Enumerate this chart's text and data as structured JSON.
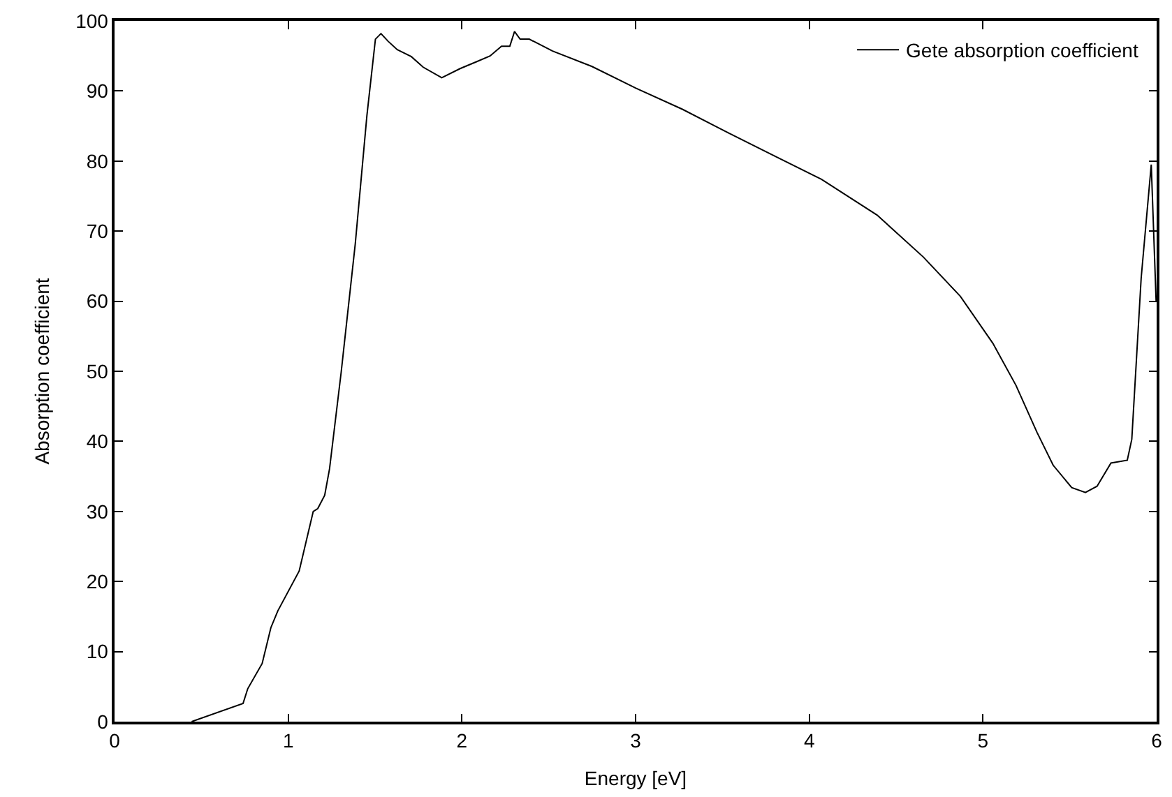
{
  "chart_data": {
    "type": "line",
    "xlabel": "Energy [eV]",
    "ylabel": "Absorption coefficient",
    "xlim": [
      0,
      6
    ],
    "xticks": [
      0,
      1,
      2,
      3,
      4,
      5,
      6
    ],
    "ylim": [
      0,
      100
    ],
    "yticks": [
      0,
      10,
      20,
      30,
      40,
      50,
      60,
      70,
      80,
      90,
      100
    ],
    "legend": "top right",
    "marker": "none",
    "line_style": "solid",
    "series": [
      {
        "name": "Gete absorption coefficient",
        "color": "#000000",
        "x": [
          0.444,
          0.74,
          0.767,
          0.85,
          0.9,
          0.94,
          1.063,
          1.144,
          1.17,
          1.21,
          1.238,
          1.305,
          1.386,
          1.453,
          1.502,
          1.534,
          1.575,
          1.628,
          1.709,
          1.777,
          1.884,
          1.99,
          2.086,
          2.162,
          2.228,
          2.276,
          2.303,
          2.335,
          2.388,
          2.522,
          2.749,
          3.002,
          3.269,
          3.536,
          3.803,
          4.07,
          4.39,
          4.657,
          4.87,
          5.057,
          5.19,
          5.311,
          5.404,
          5.511,
          5.59,
          5.657,
          5.737,
          5.831,
          5.857,
          5.911,
          5.969,
          5.997
        ],
        "values": [
          0,
          2.6,
          4.7,
          8.3,
          13.4,
          15.8,
          21.5,
          30.0,
          30.4,
          32.3,
          36.1,
          49.9,
          68.2,
          86.5,
          97.4,
          98.2,
          97.1,
          95.9,
          94.9,
          93.4,
          91.9,
          93.2,
          94.2,
          95.0,
          96.4,
          96.4,
          98.5,
          97.4,
          97.4,
          95.7,
          93.5,
          90.4,
          87.4,
          84.0,
          80.7,
          77.4,
          72.3,
          66.3,
          60.7,
          54.0,
          48.0,
          41.3,
          36.6,
          33.4,
          32.7,
          33.6,
          36.9,
          37.3,
          40.3,
          63.3,
          79.5,
          60.0
        ]
      }
    ]
  }
}
